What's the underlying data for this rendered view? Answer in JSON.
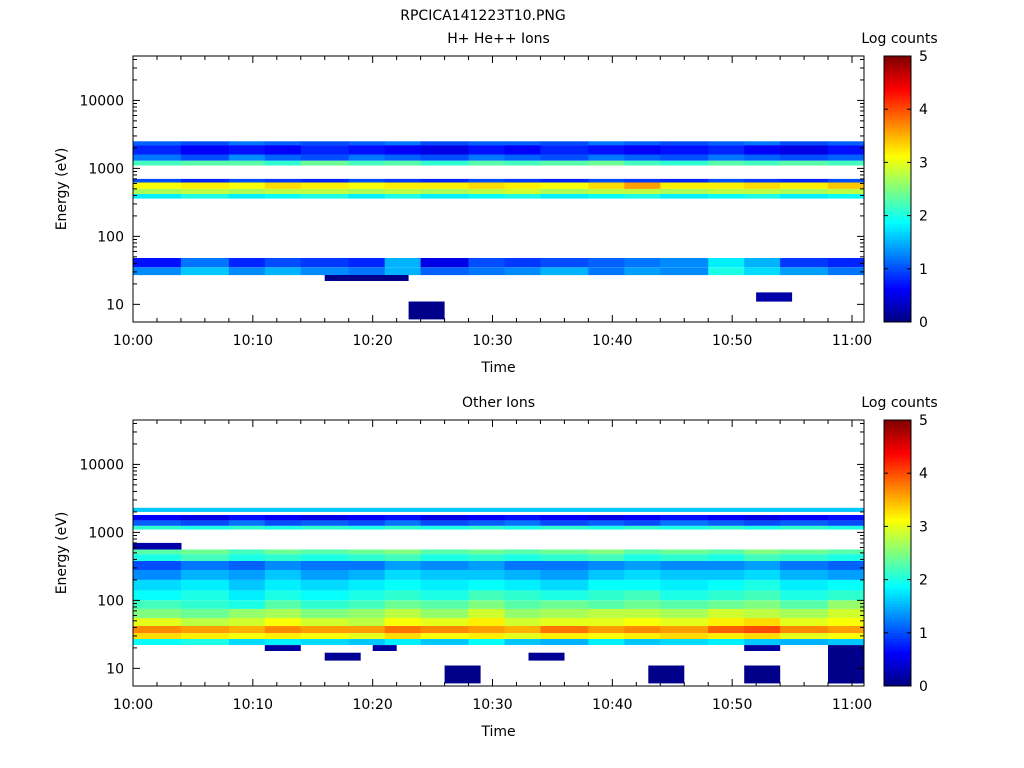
{
  "figure": {
    "title": "RPCICA141223T10.PNG"
  },
  "chart_data": [
    {
      "type": "heatmap",
      "title": "H+ He++ Ions",
      "xlabel": "Time",
      "ylabel": "Energy (eV)",
      "x_ticks": [
        "10:00",
        "10:10",
        "10:20",
        "10:30",
        "10:40",
        "10:50",
        "11:00"
      ],
      "x_range": [
        "10:00",
        "11:01"
      ],
      "y_scale": "log",
      "y_ticks": [
        "10",
        "100",
        "1000",
        "10000"
      ],
      "y_range": [
        5.5,
        45000
      ],
      "colorbar": {
        "label": "Log counts",
        "range": [
          0,
          5
        ],
        "ticks": [
          "0",
          "1",
          "2",
          "3",
          "4",
          "5"
        ]
      },
      "time_columns": [
        "10:00",
        "10:04",
        "10:08",
        "10:11",
        "10:14",
        "10:18",
        "10:21",
        "10:24",
        "10:28",
        "10:31",
        "10:34",
        "10:38",
        "10:41",
        "10:44",
        "10:48",
        "10:51",
        "10:54",
        "10:58"
      ],
      "bands": [
        {
          "energy_range": [
            35,
            48
          ],
          "values": [
            0.7,
            1.2,
            0.8,
            1.0,
            0.9,
            0.8,
            1.5,
            0.5,
            1.0,
            0.9,
            1.0,
            1.1,
            1.2,
            1.3,
            1.8,
            1.5,
            0.9,
            0.8
          ]
        },
        {
          "energy_range": [
            27,
            35
          ],
          "values": [
            1.3,
            1.6,
            1.3,
            1.5,
            1.3,
            1.2,
            1.5,
            1.1,
            1.2,
            1.3,
            1.5,
            1.2,
            1.4,
            1.3,
            2.0,
            1.7,
            1.4,
            1.2
          ]
        },
        {
          "energy_range": [
            360,
            420
          ],
          "values": [
            1.8,
            2.0,
            1.8,
            1.9,
            2.0,
            1.8,
            2.0,
            1.8,
            1.9,
            2.0,
            1.8,
            1.9,
            2.0,
            1.8,
            1.9,
            2.0,
            1.8,
            1.9
          ]
        },
        {
          "energy_range": [
            420,
            500
          ],
          "values": [
            2.7,
            2.8,
            2.7,
            2.8,
            2.8,
            2.7,
            2.8,
            2.7,
            2.8,
            2.9,
            2.7,
            2.8,
            2.8,
            2.7,
            2.8,
            2.8,
            2.7,
            2.8
          ]
        },
        {
          "energy_range": [
            500,
            620
          ],
          "values": [
            3.1,
            3.2,
            3.1,
            3.3,
            3.2,
            3.1,
            3.2,
            3.2,
            3.3,
            3.2,
            3.1,
            3.3,
            3.6,
            3.2,
            3.2,
            3.3,
            3.2,
            3.4
          ]
        },
        {
          "energy_range": [
            620,
            700
          ],
          "values": [
            1.0,
            0.8,
            1.0,
            0.9,
            0.8,
            1.0,
            0.9,
            0.8,
            1.0,
            0.9,
            0.8,
            1.0,
            0.9,
            0.8,
            1.0,
            0.9,
            0.8,
            1.0
          ]
        },
        {
          "energy_range": [
            1100,
            1300
          ],
          "values": [
            2.2,
            2.3,
            2.3,
            2.1,
            2.4,
            2.2,
            2.3,
            2.1,
            2.3,
            2.2,
            2.3,
            2.4,
            2.2,
            2.1,
            2.3,
            2.2,
            2.3,
            2.2
          ]
        },
        {
          "energy_range": [
            1300,
            1600
          ],
          "values": [
            1.2,
            1.0,
            1.3,
            1.1,
            1.0,
            1.2,
            1.1,
            1.0,
            1.2,
            1.1,
            1.0,
            1.2,
            1.1,
            1.0,
            1.2,
            1.1,
            1.0,
            1.1
          ]
        },
        {
          "energy_range": [
            1600,
            2200
          ],
          "values": [
            0.8,
            0.6,
            0.7,
            0.6,
            0.8,
            0.7,
            0.6,
            0.5,
            0.7,
            0.6,
            0.8,
            0.7,
            0.6,
            0.7,
            0.8,
            0.6,
            0.5,
            0.7
          ]
        },
        {
          "energy_range": [
            2200,
            2500
          ],
          "values": [
            1.1,
            1.0,
            1.2,
            1.1,
            1.0,
            1.1,
            1.2,
            1.0,
            1.1,
            1.1,
            1.0,
            1.2,
            1.1,
            1.0,
            1.1,
            1.2,
            1.0,
            1.1
          ]
        }
      ],
      "spots": [
        {
          "time_range": [
            "10:23",
            "10:26"
          ],
          "energy_range": [
            6,
            11
          ],
          "value": 0.05
        },
        {
          "time_range": [
            "10:52",
            "10:55"
          ],
          "energy_range": [
            11,
            15
          ],
          "value": 0.2
        },
        {
          "time_range": [
            "10:16",
            "10:23"
          ],
          "energy_range": [
            22,
            27
          ],
          "value": 0.05
        }
      ]
    },
    {
      "type": "heatmap",
      "title": "Other Ions",
      "xlabel": "Time",
      "ylabel": "Energy (eV)",
      "x_ticks": [
        "10:00",
        "10:10",
        "10:20",
        "10:30",
        "10:40",
        "10:50",
        "11:00"
      ],
      "x_range": [
        "10:00",
        "11:01"
      ],
      "y_scale": "log",
      "y_ticks": [
        "10",
        "100",
        "1000",
        "10000"
      ],
      "y_range": [
        5.5,
        45000
      ],
      "colorbar": {
        "label": "Log counts",
        "range": [
          0,
          5
        ],
        "ticks": [
          "0",
          "1",
          "2",
          "3",
          "4",
          "5"
        ]
      },
      "time_columns": [
        "10:00",
        "10:04",
        "10:08",
        "10:11",
        "10:14",
        "10:18",
        "10:21",
        "10:24",
        "10:28",
        "10:31",
        "10:34",
        "10:38",
        "10:41",
        "10:44",
        "10:48",
        "10:51",
        "10:54",
        "10:58"
      ],
      "bands": [
        {
          "energy_range": [
            22,
            27
          ],
          "values": [
            1.9,
            2.0,
            1.7,
            1.8,
            1.7,
            1.6,
            1.8,
            1.6,
            1.9,
            1.6,
            1.5,
            1.8,
            1.6,
            1.7,
            1.8,
            1.6,
            1.5,
            1.6
          ]
        },
        {
          "energy_range": [
            27,
            33
          ],
          "values": [
            3.3,
            3.2,
            3.1,
            3.2,
            3.1,
            3.0,
            3.3,
            3.1,
            3.2,
            3.0,
            3.2,
            3.1,
            3.2,
            3.3,
            3.2,
            3.3,
            3.0,
            3.1
          ]
        },
        {
          "energy_range": [
            33,
            42
          ],
          "values": [
            3.7,
            3.6,
            3.5,
            3.7,
            3.6,
            3.6,
            3.8,
            3.7,
            3.6,
            3.5,
            3.8,
            3.6,
            3.7,
            3.6,
            3.9,
            4.0,
            3.7,
            3.6
          ]
        },
        {
          "energy_range": [
            42,
            55
          ],
          "values": [
            3.0,
            2.8,
            2.9,
            3.1,
            2.9,
            2.8,
            3.1,
            3.0,
            3.2,
            2.9,
            3.0,
            3.0,
            3.1,
            3.0,
            3.2,
            3.3,
            3.0,
            3.1
          ]
        },
        {
          "energy_range": [
            55,
            75
          ],
          "values": [
            2.5,
            2.4,
            2.6,
            2.7,
            2.5,
            2.6,
            2.8,
            2.6,
            2.9,
            2.6,
            2.7,
            2.8,
            2.8,
            2.7,
            2.9,
            2.8,
            2.7,
            2.9
          ]
        },
        {
          "energy_range": [
            75,
            100
          ],
          "values": [
            2.2,
            2.1,
            2.0,
            2.3,
            2.1,
            2.2,
            2.4,
            2.3,
            2.5,
            2.3,
            2.4,
            2.3,
            2.4,
            2.3,
            2.4,
            2.5,
            2.3,
            2.6
          ]
        },
        {
          "energy_range": [
            100,
            140
          ],
          "values": [
            1.9,
            2.0,
            1.8,
            2.0,
            1.9,
            2.0,
            2.1,
            2.0,
            2.2,
            2.1,
            2.0,
            2.1,
            2.2,
            2.0,
            2.1,
            2.2,
            2.0,
            2.1
          ]
        },
        {
          "energy_range": [
            140,
            200
          ],
          "values": [
            1.7,
            1.8,
            1.6,
            1.8,
            1.7,
            1.8,
            1.9,
            1.8,
            1.9,
            1.8,
            1.7,
            1.9,
            1.9,
            1.8,
            1.9,
            2.0,
            1.8,
            1.9
          ]
        },
        {
          "energy_range": [
            200,
            280
          ],
          "values": [
            1.3,
            1.5,
            1.4,
            1.6,
            1.4,
            1.5,
            1.7,
            1.6,
            1.6,
            1.5,
            1.4,
            1.6,
            1.7,
            1.6,
            1.6,
            1.7,
            1.5,
            1.4
          ]
        },
        {
          "energy_range": [
            280,
            380
          ],
          "values": [
            1.0,
            1.2,
            1.1,
            1.3,
            1.2,
            1.2,
            1.4,
            1.3,
            1.4,
            1.2,
            1.2,
            1.3,
            1.4,
            1.3,
            1.3,
            1.4,
            1.2,
            1.1
          ]
        },
        {
          "energy_range": [
            380,
            480
          ],
          "values": [
            2.0,
            2.2,
            2.0,
            2.1,
            2.0,
            2.1,
            2.2,
            2.0,
            2.1,
            2.0,
            2.1,
            2.2,
            2.0,
            2.1,
            2.0,
            2.2,
            2.1,
            2.0
          ]
        },
        {
          "energy_range": [
            480,
            560
          ],
          "values": [
            2.3,
            2.4,
            2.2,
            2.4,
            2.3,
            2.4,
            2.5,
            2.3,
            2.4,
            2.3,
            2.4,
            2.5,
            2.3,
            2.4,
            2.3,
            2.5,
            2.4,
            2.3
          ]
        },
        {
          "energy_range": [
            560,
            700
          ],
          "values": [
            0.2,
            0.0,
            0.0,
            0.0,
            0.0,
            0.0,
            0.0,
            0.0,
            0.0,
            0.0,
            0.0,
            0.0,
            0.0,
            0.0,
            0.0,
            0.0,
            0.0,
            0.0
          ]
        },
        {
          "energy_range": [
            1100,
            1250
          ],
          "values": [
            2.1,
            2.0,
            2.1,
            2.0,
            2.1,
            2.0,
            2.1,
            2.0,
            2.1,
            2.0,
            2.1,
            2.0,
            2.1,
            2.0,
            2.1,
            2.0,
            2.1,
            2.0
          ]
        },
        {
          "energy_range": [
            1250,
            1500
          ],
          "values": [
            1.1,
            1.0,
            1.2,
            1.0,
            1.1,
            1.0,
            1.2,
            1.0,
            1.1,
            1.2,
            1.0,
            1.1,
            1.0,
            1.2,
            1.1,
            1.0,
            1.1,
            1.0
          ]
        },
        {
          "energy_range": [
            1500,
            1800
          ],
          "values": [
            0.6,
            0.5,
            0.7,
            0.6,
            0.5,
            0.6,
            0.7,
            0.5,
            0.6,
            0.7,
            0.6,
            0.5,
            0.6,
            0.7,
            0.6,
            0.5,
            0.6,
            0.7
          ]
        },
        {
          "energy_range": [
            2000,
            2300
          ],
          "values": [
            1.6,
            1.6,
            1.6,
            1.6,
            1.6,
            1.6,
            1.6,
            1.6,
            1.6,
            1.6,
            1.6,
            1.6,
            1.6,
            1.6,
            1.6,
            1.6,
            1.6,
            1.6
          ]
        }
      ],
      "spots": [
        {
          "time_range": [
            "10:26",
            "10:29"
          ],
          "energy_range": [
            6,
            11
          ],
          "value": 0.05
        },
        {
          "time_range": [
            "10:43",
            "10:46"
          ],
          "energy_range": [
            6,
            11
          ],
          "value": 0.05
        },
        {
          "time_range": [
            "10:51",
            "10:54"
          ],
          "energy_range": [
            6,
            11
          ],
          "value": 0.05
        },
        {
          "time_range": [
            "10:58",
            "11:01"
          ],
          "energy_range": [
            6,
            22
          ],
          "value": 0.05
        },
        {
          "time_range": [
            "10:16",
            "10:19"
          ],
          "energy_range": [
            13,
            17
          ],
          "value": 0.1
        },
        {
          "time_range": [
            "10:33",
            "10:36"
          ],
          "energy_range": [
            13,
            17
          ],
          "value": 0.1
        },
        {
          "time_range": [
            "10:11",
            "10:14"
          ],
          "energy_range": [
            18,
            22
          ],
          "value": 0.15
        },
        {
          "time_range": [
            "10:20",
            "10:22"
          ],
          "energy_range": [
            18,
            22
          ],
          "value": 0.15
        },
        {
          "time_range": [
            "10:51",
            "10:54"
          ],
          "energy_range": [
            18,
            22
          ],
          "value": 0.15
        }
      ]
    }
  ]
}
